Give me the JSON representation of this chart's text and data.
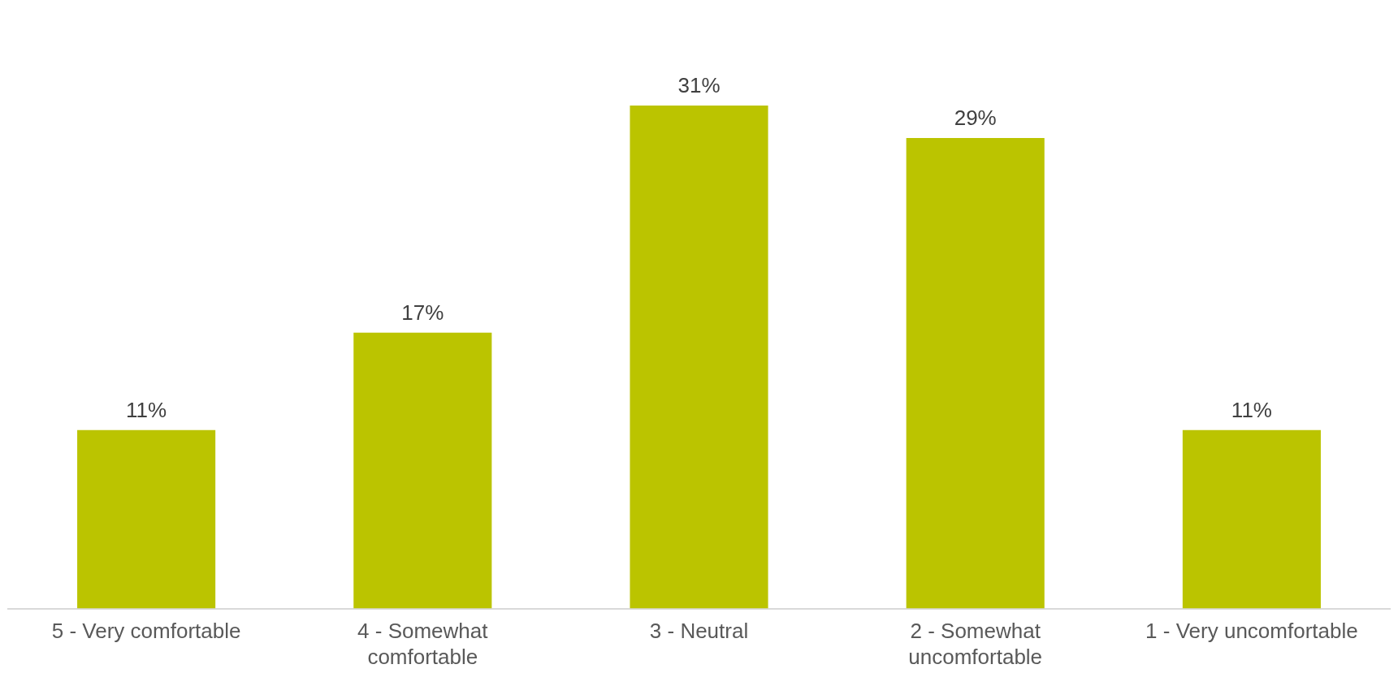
{
  "chart_data": {
    "type": "bar",
    "categories": [
      "5 - Very comfortable",
      "4 - Somewhat comfortable",
      "3 - Neutral",
      "2 - Somewhat uncomfortable",
      "1 - Very uncomfortable"
    ],
    "values": [
      11,
      17,
      31,
      29,
      11
    ],
    "color": "#bbc400",
    "value_labels": [
      "11%",
      "17%",
      "31%",
      "29%",
      "11%"
    ],
    "grid": false,
    "legend": false
  }
}
